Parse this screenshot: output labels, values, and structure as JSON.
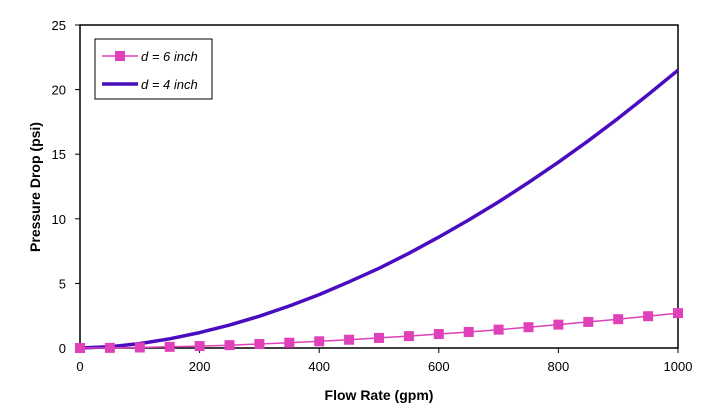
{
  "chart_data": {
    "type": "line",
    "title": "",
    "xlabel": "Flow Rate (gpm)",
    "ylabel": "Pressure Drop (psi)",
    "xlim": [
      0,
      1000
    ],
    "ylim": [
      0,
      25
    ],
    "xticks": [
      "0",
      "200",
      "400",
      "600",
      "800",
      "1000"
    ],
    "yticks": [
      "0",
      "5",
      "10",
      "15",
      "20",
      "25"
    ],
    "grid": false,
    "legend_position": "top-left",
    "x": [
      0,
      50,
      100,
      150,
      200,
      250,
      300,
      350,
      400,
      450,
      500,
      550,
      600,
      650,
      700,
      750,
      800,
      850,
      900,
      950,
      1000
    ],
    "series": [
      {
        "name": "d = 6 inch",
        "color": "#e040b8",
        "marker": "square",
        "values": [
          0,
          0.01,
          0.04,
          0.09,
          0.15,
          0.22,
          0.31,
          0.41,
          0.52,
          0.64,
          0.78,
          0.92,
          1.08,
          1.24,
          1.42,
          1.61,
          1.81,
          2.02,
          2.23,
          2.46,
          2.7
        ]
      },
      {
        "name": "d = 4 inch",
        "color": "#4a0cc0",
        "marker": "none",
        "values": [
          0,
          0.1,
          0.34,
          0.71,
          1.19,
          1.77,
          2.46,
          3.25,
          4.13,
          5.12,
          6.17,
          7.33,
          8.58,
          9.91,
          11.31,
          12.81,
          14.38,
          16.04,
          17.78,
          19.61,
          21.5
        ]
      }
    ]
  }
}
